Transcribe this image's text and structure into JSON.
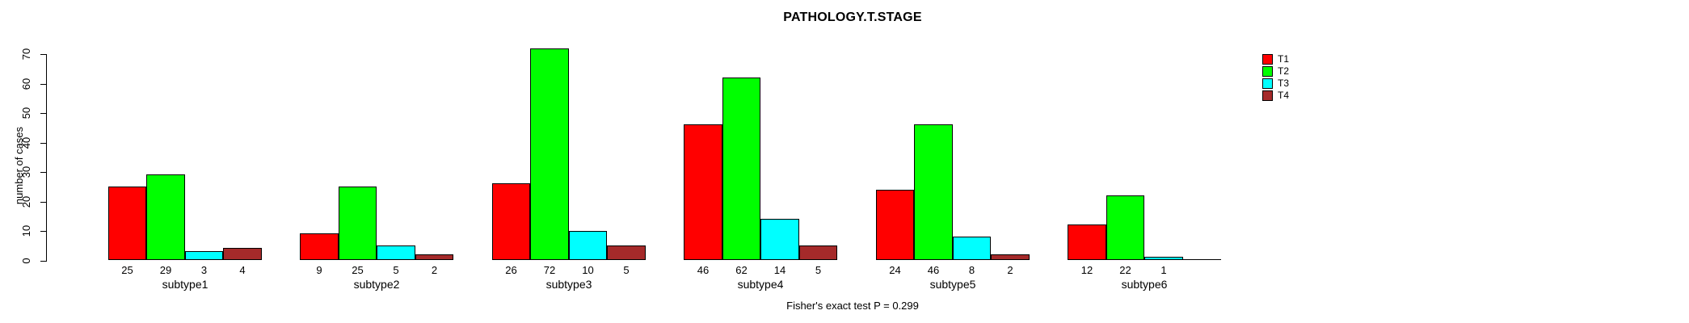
{
  "chart_data": {
    "type": "bar",
    "title": "PATHOLOGY.T.STAGE",
    "xlabel": "",
    "ylabel": "number of cases",
    "caption": "Fisher's exact test P = 0.299",
    "ylim": [
      0,
      70
    ],
    "yticks": [
      0,
      10,
      20,
      30,
      40,
      50,
      60,
      70
    ],
    "grid": false,
    "legend_position": "top-right",
    "categories": [
      "subtype1",
      "subtype2",
      "subtype3",
      "subtype4",
      "subtype5",
      "subtype6"
    ],
    "series": [
      {
        "name": "T1",
        "color": "#FF0000",
        "values": [
          25,
          9,
          26,
          46,
          24,
          12
        ]
      },
      {
        "name": "T2",
        "color": "#00FF00",
        "values": [
          29,
          25,
          72,
          62,
          46,
          22
        ]
      },
      {
        "name": "T3",
        "color": "#00FFFF",
        "values": [
          3,
          5,
          10,
          14,
          8,
          1
        ]
      },
      {
        "name": "T4",
        "color": "#A52A2A",
        "values": [
          4,
          2,
          5,
          5,
          2,
          0
        ]
      }
    ],
    "bar_value_labels": [
      [
        "25",
        "29",
        "3",
        "4"
      ],
      [
        "9",
        "25",
        "5",
        "2"
      ],
      [
        "26",
        "72",
        "10",
        "5"
      ],
      [
        "46",
        "62",
        "14",
        "5"
      ],
      [
        "24",
        "46",
        "8",
        "2"
      ],
      [
        "12",
        "22",
        "1",
        ""
      ]
    ]
  }
}
